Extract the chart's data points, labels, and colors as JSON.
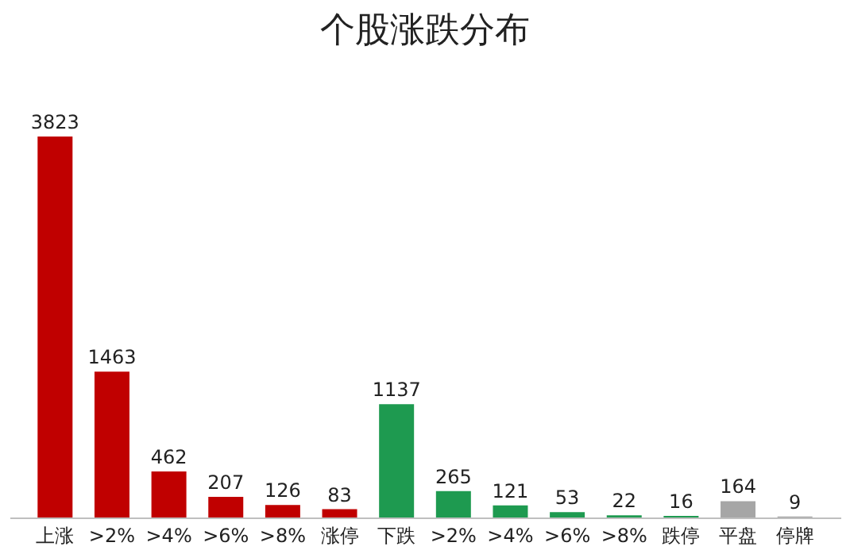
{
  "chart_data": {
    "type": "bar",
    "title": "个股涨跌分布",
    "categories": [
      "上涨",
      ">2%",
      ">4%",
      ">6%",
      ">8%",
      "涨停",
      "下跌",
      ">2%",
      ">4%",
      ">6%",
      ">8%",
      "跌停",
      "平盘",
      "停牌"
    ],
    "values": [
      3823,
      1463,
      462,
      207,
      126,
      83,
      1137,
      265,
      121,
      53,
      22,
      16,
      164,
      9
    ],
    "colors": [
      "#c00000",
      "#c00000",
      "#c00000",
      "#c00000",
      "#c00000",
      "#c00000",
      "#1e9a50",
      "#1e9a50",
      "#1e9a50",
      "#1e9a50",
      "#1e9a50",
      "#1e9a50",
      "#a6a6a6",
      "#a6a6a6"
    ],
    "data_labels": true
  }
}
